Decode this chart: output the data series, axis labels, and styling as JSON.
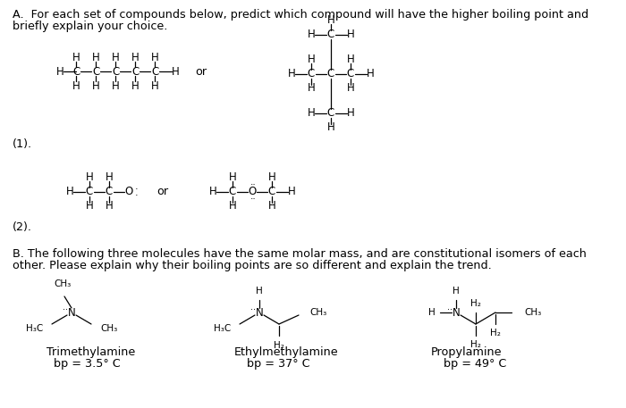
{
  "background_color": "#ffffff",
  "figsize": [
    7.0,
    4.57
  ],
  "dpi": 100,
  "line_A1": "A.  For each set of compounds below, predict which compound will have the higher boiling point and",
  "line_A2": "briefly explain your choice.",
  "line_B1": "B. The following three molecules have the same molar mass, and are constitutional isomers of each",
  "line_B2": "other. Please explain why their boiling points are so different and explain the trend.",
  "label_1": "(1).",
  "label_2": "(2).",
  "trim_name": "Trimethylamine",
  "trim_bp": "bp = 3.5",
  "ethyl_name": "Ethylmethylamine",
  "ethyl_bp": "bp = 37",
  "prop_name": "Propylamine",
  "prop_bp": "bp = 49",
  "deg": "°",
  "font_main": 9.2,
  "font_struct": 8.5,
  "font_struct_small": 7.5
}
